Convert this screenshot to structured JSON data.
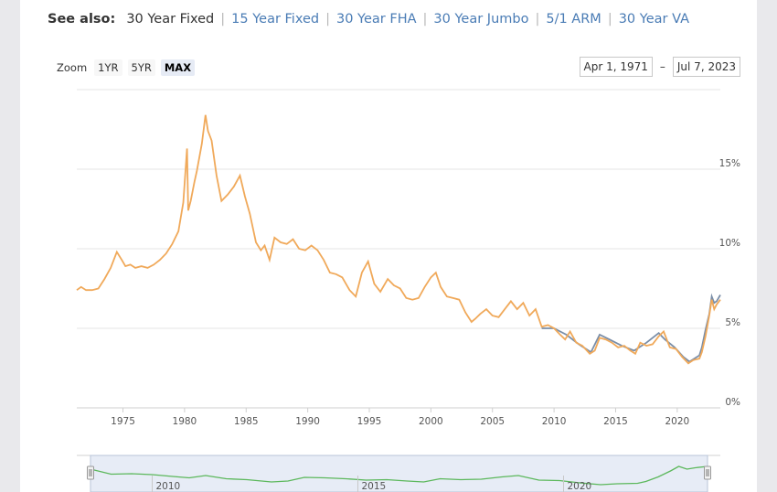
{
  "see_also": {
    "label": "See also:",
    "current": "30 Year Fixed",
    "links": [
      "15 Year Fixed",
      "30 Year FHA",
      "30 Year Jumbo",
      "5/1 ARM",
      "30 Year VA"
    ]
  },
  "zoom": {
    "label": "Zoom",
    "buttons": [
      "1YR",
      "5YR",
      "MAX"
    ],
    "active": "MAX"
  },
  "range": {
    "from": "Apr 1, 1971",
    "to": "Jul 7, 2023"
  },
  "colors": {
    "series_main": "#f0a95a",
    "series_second": "#7a8ea8",
    "navigator": "#5cb85c"
  },
  "chart_data": {
    "type": "line",
    "title": "",
    "xlabel": "",
    "ylabel": "",
    "xlim": [
      1971.25,
      2023.5
    ],
    "ylim": [
      0,
      20
    ],
    "y_ticks": [
      0,
      5,
      10,
      15
    ],
    "y_tick_labels": [
      "0%",
      "5%",
      "10%",
      "15%"
    ],
    "x_ticks": [
      1975,
      1980,
      1985,
      1990,
      1995,
      2000,
      2005,
      2010,
      2015,
      2020
    ],
    "x_tick_labels": [
      "1975",
      "1980",
      "1985",
      "1990",
      "1995",
      "2000",
      "2005",
      "2010",
      "2015",
      "2020"
    ],
    "grid": true,
    "series": [
      {
        "x": [
          1971.25,
          1971.6,
          1972.0,
          1972.5,
          1973.0,
          1973.5,
          1974.0,
          1974.5,
          1974.9,
          1975.2,
          1975.6,
          1976.0,
          1976.5,
          1977.0,
          1977.5,
          1978.0,
          1978.5,
          1979.0,
          1979.5,
          1979.9,
          1980.2,
          1980.3,
          1980.5,
          1980.8,
          1981.0,
          1981.4,
          1981.7,
          1981.9,
          1982.2,
          1982.6,
          1983.0,
          1983.5,
          1984.0,
          1984.5,
          1984.9,
          1985.3,
          1985.8,
          1986.2,
          1986.5,
          1986.9,
          1987.3,
          1987.8,
          1988.3,
          1988.8,
          1989.3,
          1989.8,
          1990.3,
          1990.8,
          1991.3,
          1991.8,
          1992.3,
          1992.8,
          1993.4,
          1993.9,
          1994.4,
          1994.9,
          1995.4,
          1995.9,
          1996.5,
          1997.0,
          1997.5,
          1998.0,
          1998.5,
          1999.0,
          1999.5,
          2000.0,
          2000.4,
          2000.8,
          2001.3,
          2001.8,
          2002.3,
          2002.8,
          2003.3,
          2003.6,
          2004.0,
          2004.5,
          2005.0,
          2005.5,
          2006.0,
          2006.5,
          2007.0,
          2007.5,
          2008.0,
          2008.5,
          2009.0,
          2009.5,
          2010.0,
          2010.5,
          2010.9,
          2011.3,
          2011.8,
          2012.3,
          2012.9,
          2013.3,
          2013.7,
          2014.2,
          2014.7,
          2015.2,
          2015.7,
          2016.2,
          2016.6,
          2017.0,
          2017.5,
          2018.0,
          2018.5,
          2018.9,
          2019.4,
          2019.9,
          2020.4,
          2020.9,
          2021.3,
          2021.8,
          2022.0,
          2022.3,
          2022.6,
          2022.8,
          2023.0,
          2023.2,
          2023.5
        ],
        "values": [
          7.4,
          7.6,
          7.4,
          7.4,
          7.5,
          8.1,
          8.8,
          9.8,
          9.3,
          8.9,
          9.0,
          8.8,
          8.9,
          8.8,
          9.0,
          9.3,
          9.7,
          10.3,
          11.1,
          12.9,
          16.3,
          12.4,
          13.0,
          14.2,
          14.9,
          16.6,
          18.4,
          17.4,
          16.8,
          14.6,
          13.0,
          13.4,
          13.9,
          14.6,
          13.3,
          12.2,
          10.4,
          9.9,
          10.2,
          9.3,
          10.7,
          10.4,
          10.3,
          10.6,
          10.0,
          9.9,
          10.2,
          9.9,
          9.3,
          8.5,
          8.4,
          8.2,
          7.4,
          7.0,
          8.5,
          9.2,
          7.8,
          7.3,
          8.1,
          7.7,
          7.5,
          6.9,
          6.8,
          6.9,
          7.6,
          8.2,
          8.5,
          7.6,
          7.0,
          6.9,
          6.8,
          6.0,
          5.4,
          5.6,
          5.9,
          6.2,
          5.8,
          5.7,
          6.2,
          6.7,
          6.2,
          6.6,
          5.8,
          6.2,
          5.1,
          5.2,
          5.0,
          4.6,
          4.3,
          4.8,
          4.1,
          3.9,
          3.4,
          3.6,
          4.4,
          4.3,
          4.1,
          3.8,
          3.9,
          3.6,
          3.4,
          4.1,
          3.9,
          4.0,
          4.5,
          4.8,
          3.8,
          3.7,
          3.2,
          2.8,
          3.0,
          3.1,
          3.5,
          4.5,
          5.8,
          6.8,
          6.2,
          6.5,
          6.8
        ]
      },
      {
        "x": [
          2009.0,
          2010.0,
          2011.0,
          2012.0,
          2013.0,
          2013.7,
          2014.5,
          2015.5,
          2016.5,
          2017.5,
          2018.5,
          2019.0,
          2019.8,
          2020.5,
          2021.0,
          2021.8,
          2022.0,
          2022.3,
          2022.6,
          2022.8,
          2023.0,
          2023.2,
          2023.5
        ],
        "values": [
          5.0,
          5.0,
          4.6,
          4.0,
          3.5,
          4.6,
          4.3,
          3.9,
          3.6,
          4.1,
          4.7,
          4.3,
          3.8,
          3.2,
          2.9,
          3.3,
          3.8,
          4.9,
          5.9,
          7.0,
          6.6,
          6.7,
          7.1
        ]
      }
    ],
    "navigator": {
      "x_tick_labels": [
        "2010",
        "2015",
        "2020"
      ]
    }
  }
}
